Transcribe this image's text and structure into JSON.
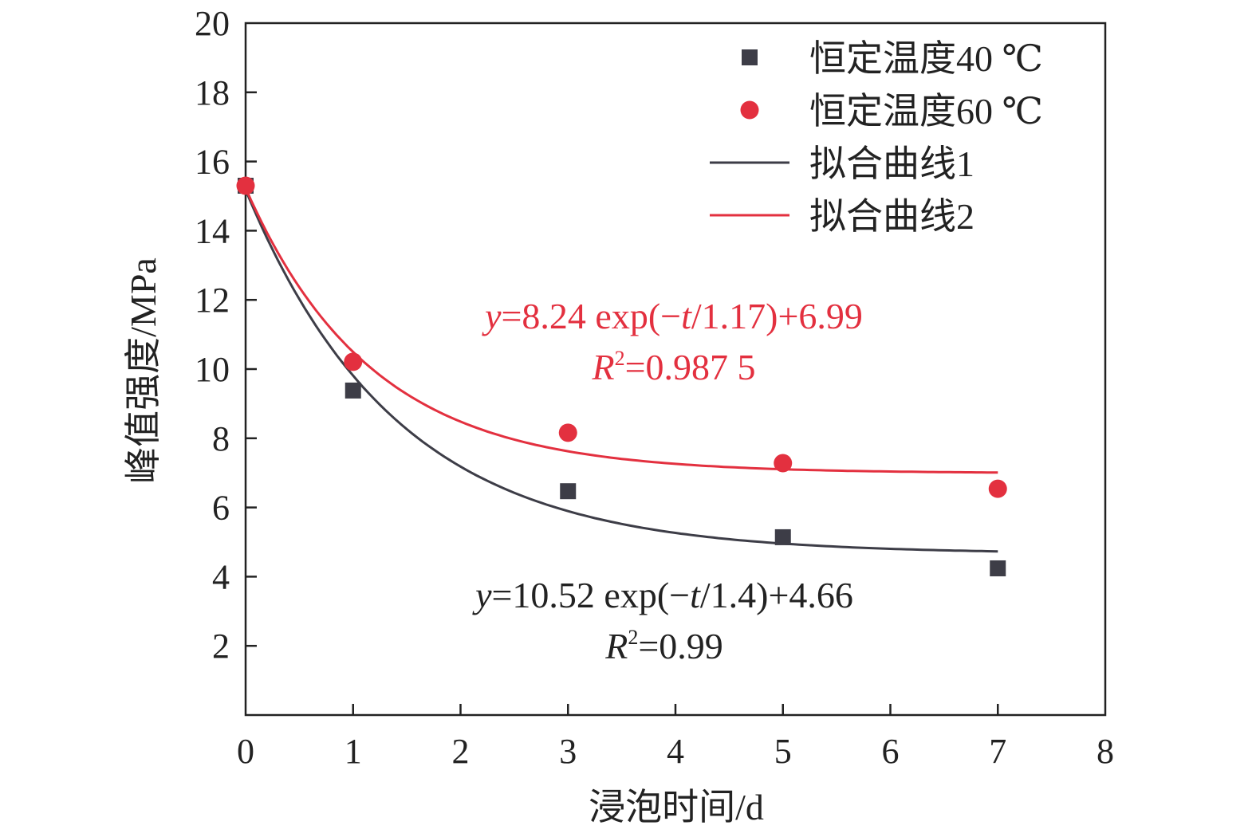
{
  "chart_data": {
    "type": "scatter",
    "xlabel": "浸泡时间/d",
    "ylabel": "峰值强度/MPa",
    "xlim": [
      0,
      8
    ],
    "ylim": [
      0,
      20
    ],
    "xticks": [
      "0",
      "1",
      "2",
      "3",
      "4",
      "5",
      "6",
      "7",
      "8"
    ],
    "yticks": [
      "2",
      "4",
      "6",
      "8",
      "10",
      "12",
      "14",
      "16",
      "18",
      "20"
    ],
    "grid": false,
    "legend_position": "top-right",
    "series": [
      {
        "name": "恒定温度40 ℃",
        "marker": "square",
        "color": "#3d3d47",
        "x": [
          0,
          1,
          3,
          5,
          7
        ],
        "y": [
          15.3,
          9.38,
          6.47,
          5.14,
          4.24
        ]
      },
      {
        "name": "恒定温度60 ℃",
        "marker": "circle",
        "color": "#e3303f",
        "x": [
          0,
          1,
          3,
          5,
          7
        ],
        "y": [
          15.3,
          10.21,
          8.16,
          7.28,
          6.54
        ]
      }
    ],
    "fits": [
      {
        "name": "拟合曲线1",
        "color": "#3d3d47",
        "a": 10.52,
        "tau": 1.4,
        "c": 4.66,
        "xrange": [
          0,
          7
        ],
        "equation": {
          "y": "y",
          "rest": "=10.52 exp(−",
          "t": "t",
          "tail": "/1.4)+4.66"
        },
        "r2": {
          "R": "R",
          "sup": "2",
          "value": "=0.99"
        }
      },
      {
        "name": "拟合曲线2",
        "color": "#e3303f",
        "a": 8.24,
        "tau": 1.17,
        "c": 6.99,
        "xrange": [
          0,
          7
        ],
        "equation": {
          "y": "y",
          "rest": "=8.24 exp(−",
          "t": "t",
          "tail": "/1.17)+6.99"
        },
        "r2": {
          "R": "R",
          "sup": "2",
          "value": "=0.987 5"
        }
      }
    ]
  }
}
